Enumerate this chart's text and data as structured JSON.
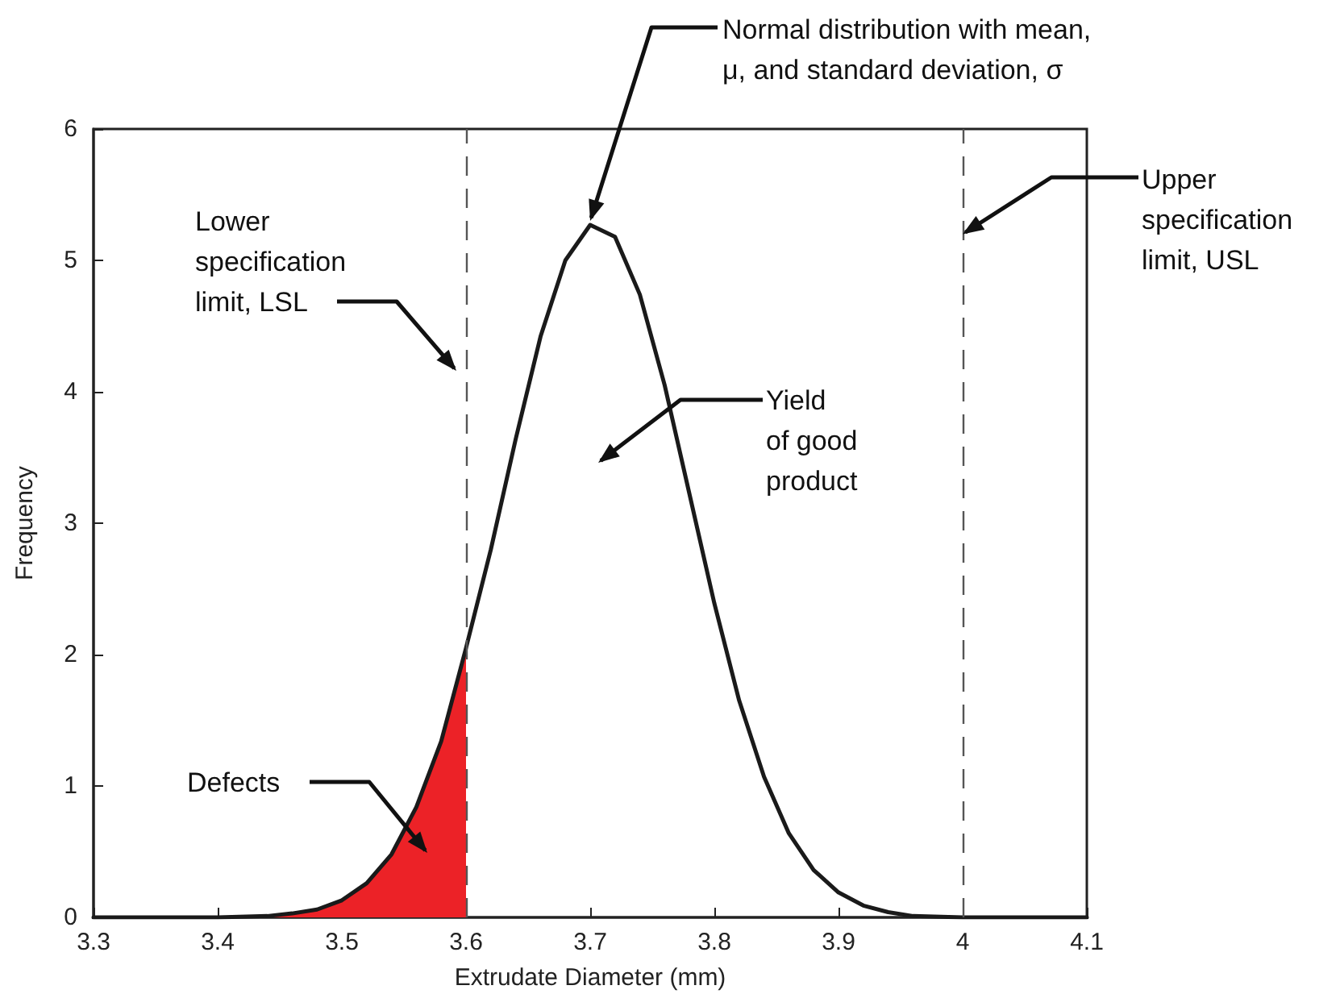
{
  "chart_data": {
    "type": "line",
    "xlabel": "Extrudate Diameter (mm)",
    "ylabel": "Frequency",
    "xlim": [
      3.3,
      4.1
    ],
    "xticks": [
      3.3,
      3.4,
      3.5,
      3.6,
      3.7,
      3.8,
      3.9,
      4,
      4.1
    ],
    "ylim": [
      0,
      6
    ],
    "yticks": [
      0,
      1,
      2,
      3,
      4,
      5,
      6
    ],
    "grid": false,
    "marker": "none",
    "line_style": "solid",
    "series": [
      {
        "type": "area",
        "color": "#ec2227",
        "x": [
          3.3,
          3.4,
          3.44,
          3.46,
          3.48,
          3.5,
          3.52,
          3.54,
          3.56,
          3.58,
          3.6
        ],
        "values": [
          0,
          0,
          0.01,
          0.03,
          0.06,
          0.13,
          0.26,
          0.48,
          0.84,
          1.34,
          2.05
        ]
      },
      {
        "type": "line",
        "color": "#1a1a1a",
        "x": [
          3.3,
          3.4,
          3.44,
          3.46,
          3.48,
          3.5,
          3.52,
          3.54,
          3.56,
          3.58,
          3.6,
          3.62,
          3.64,
          3.66,
          3.68,
          3.7,
          3.72,
          3.74,
          3.76,
          3.78,
          3.8,
          3.82,
          3.84,
          3.86,
          3.88,
          3.9,
          3.92,
          3.94,
          3.96,
          4,
          4.1
        ],
        "values": [
          0,
          0,
          0.01,
          0.03,
          0.06,
          0.13,
          0.26,
          0.48,
          0.84,
          1.34,
          2.05,
          2.8,
          3.64,
          4.42,
          5.0,
          5.27,
          5.18,
          4.74,
          4.05,
          3.22,
          2.39,
          1.65,
          1.07,
          0.64,
          0.36,
          0.19,
          0.09,
          0.04,
          0.01,
          0,
          0
        ]
      }
    ],
    "ref_lines": [
      {
        "axis": "x",
        "value": 3.6,
        "label": null,
        "color": "#555555",
        "line_style": "dashed"
      },
      {
        "axis": "x",
        "value": 4,
        "label": null,
        "color": "#555555",
        "line_style": "dashed"
      }
    ],
    "annotations": [
      {
        "text": "Normal distribution with mean,\nμ, and standard deviation, σ",
        "x": 3.7,
        "y": 5.3
      },
      "Lower\nspecification\nlimit, LSL",
      {
        "text": "Upper\nspecification\nlimit, USL",
        "x": 4,
        "y": 5.2
      },
      "Yield\nof good\nproduct",
      "Defects"
    ]
  }
}
